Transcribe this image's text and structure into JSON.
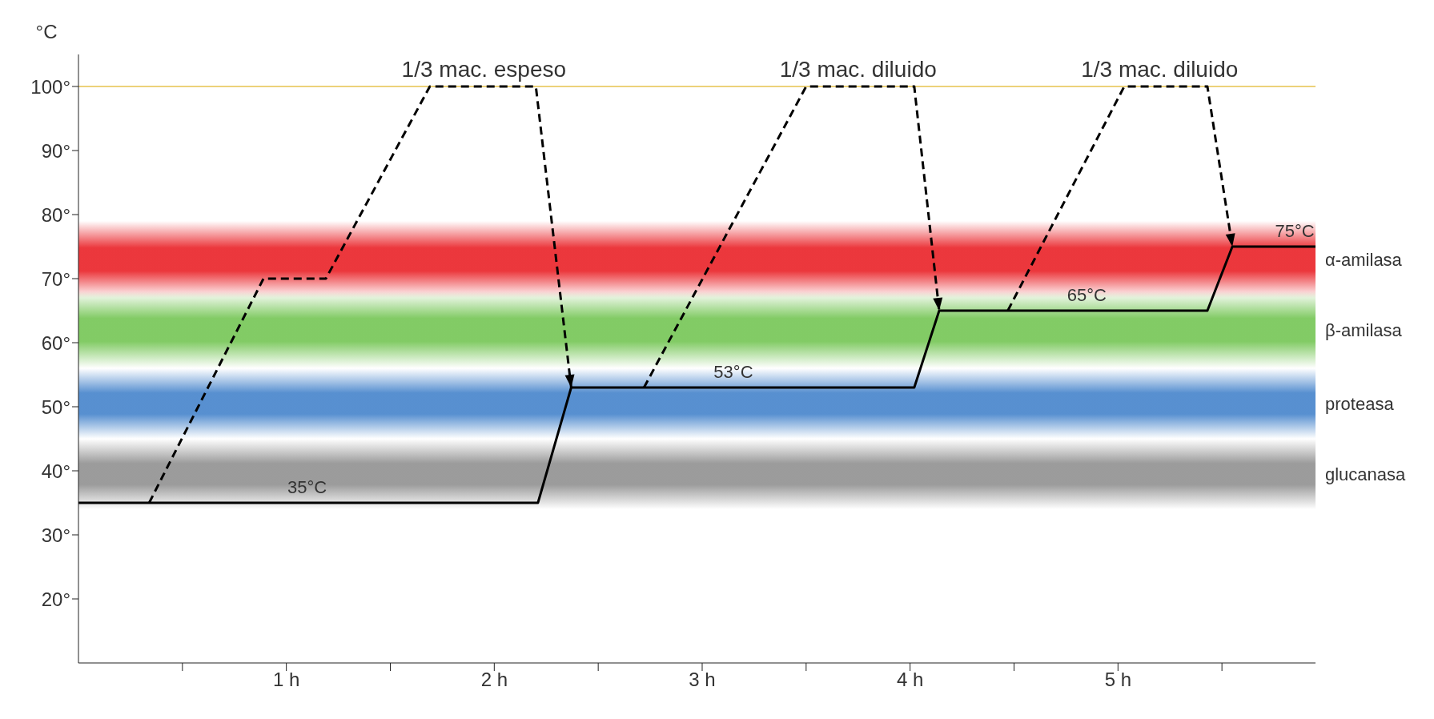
{
  "chart_data": {
    "type": "line",
    "ylabel": "°C",
    "xlim": [
      0,
      5.95
    ],
    "ylim": [
      10,
      105
    ],
    "xticks": [
      {
        "value": 0.5,
        "label": null
      },
      {
        "value": 1,
        "label": "1 h"
      },
      {
        "value": 1.5,
        "label": null
      },
      {
        "value": 2,
        "label": "2 h"
      },
      {
        "value": 2.5,
        "label": null
      },
      {
        "value": 3,
        "label": "3 h"
      },
      {
        "value": 3.5,
        "label": null
      },
      {
        "value": 4,
        "label": "4 h"
      },
      {
        "value": 4.5,
        "label": null
      },
      {
        "value": 5,
        "label": "5 h"
      },
      {
        "value": 5.5,
        "label": null
      }
    ],
    "yticks": [
      {
        "value": 20,
        "label": "20°"
      },
      {
        "value": 30,
        "label": "30°"
      },
      {
        "value": 40,
        "label": "40°"
      },
      {
        "value": 50,
        "label": "50°"
      },
      {
        "value": 60,
        "label": "60°"
      },
      {
        "value": 70,
        "label": "70°"
      },
      {
        "value": 80,
        "label": "80°"
      },
      {
        "value": 90,
        "label": "90°"
      },
      {
        "value": 100,
        "label": "100°"
      }
    ],
    "grid": false,
    "marker": "none",
    "series": [
      {
        "color": "#000000",
        "line_style": "solid",
        "x": [
          0,
          2.21,
          2.37,
          4.02,
          4.14,
          5.43,
          5.55,
          5.95
        ],
        "values": [
          35,
          35,
          53,
          53,
          65,
          65,
          75,
          75
        ]
      },
      {
        "color": "#000000",
        "line_style": "dashed",
        "x": [
          0.34,
          0.89,
          1.19,
          1.69,
          2.2,
          2.37
        ],
        "values": [
          35,
          70,
          70,
          100,
          100,
          53
        ]
      },
      {
        "color": "#000000",
        "line_style": "dashed",
        "x": [
          2.72,
          3.5,
          4.02,
          4.14
        ],
        "values": [
          53,
          100,
          100,
          65
        ]
      },
      {
        "color": "#000000",
        "line_style": "dashed",
        "x": [
          4.47,
          5.03,
          5.43,
          5.55
        ],
        "values": [
          65,
          100,
          100,
          75
        ]
      }
    ],
    "ref_lines": [
      {
        "axis": "y",
        "value": 100,
        "color": "#ecd27a"
      }
    ],
    "bands": [
      {
        "axis": "y",
        "from": 67,
        "to": 79,
        "label": "α-amilasa",
        "color": "#e8141a"
      },
      {
        "axis": "y",
        "from": 56,
        "to": 68,
        "label": "β-amilasa",
        "color": "#6cc24a"
      },
      {
        "axis": "y",
        "from": 45,
        "to": 56,
        "label": "proteasa",
        "color": "#3a7cc8"
      },
      {
        "axis": "y",
        "from": 34,
        "to": 45,
        "label": "glucanasa",
        "color": "#8a8a8a"
      }
    ],
    "annotations": [
      {
        "text": "1/3 mac. espeso",
        "x": 1.95,
        "y": 100
      },
      {
        "text": "1/3 mac. diluido",
        "x": 3.75,
        "y": 100
      },
      {
        "text": "1/3 mac. diluido",
        "x": 5.2,
        "y": 100
      },
      {
        "text": "35°C",
        "x": 1.1,
        "y": 35
      },
      {
        "text": "53°C",
        "x": 3.15,
        "y": 53
      },
      {
        "text": "65°C",
        "x": 4.85,
        "y": 65
      },
      {
        "text": "75°C",
        "x": 5.85,
        "y": 75
      }
    ]
  }
}
